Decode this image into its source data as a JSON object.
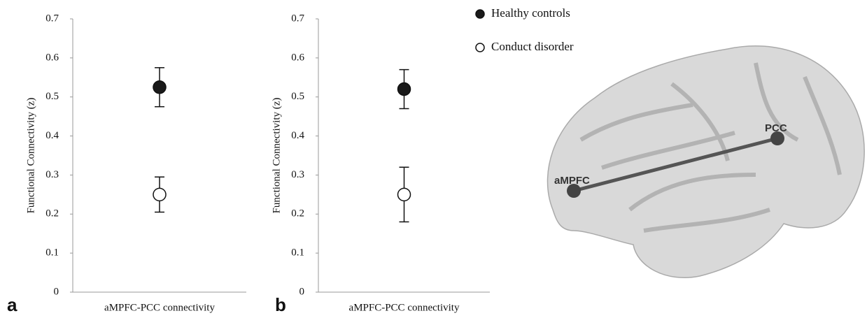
{
  "chart_data": [
    {
      "type": "errorbar",
      "panel_label": "a",
      "ylabel": "Functional Connectivity (z)",
      "categories": [
        "aMPFC-PCC connectivity"
      ],
      "series": [
        {
          "name": "Healthy controls",
          "color": "#1a1a1a",
          "values": [
            0.525
          ],
          "error": [
            0.05
          ]
        },
        {
          "name": "Conduct disorder",
          "color": "#ffffff",
          "values": [
            0.25
          ],
          "error": [
            0.045
          ]
        }
      ],
      "ylim": [
        0,
        0.7
      ],
      "yticks": [
        0,
        0.1,
        0.2,
        0.3,
        0.4,
        0.5,
        0.6,
        0.7
      ]
    },
    {
      "type": "errorbar",
      "panel_label": "b",
      "ylabel": "Functional Connectivity (z)",
      "categories": [
        "aMPFC-PCC connectivity"
      ],
      "series": [
        {
          "name": "Healthy controls",
          "color": "#1a1a1a",
          "values": [
            0.52
          ],
          "error": [
            0.05
          ]
        },
        {
          "name": "Conduct disorder",
          "color": "#ffffff",
          "values": [
            0.25
          ],
          "error": [
            0.07
          ]
        }
      ],
      "ylim": [
        0,
        0.7
      ],
      "yticks": [
        0,
        0.1,
        0.2,
        0.3,
        0.4,
        0.5,
        0.6,
        0.7
      ]
    }
  ],
  "brain_nodes": [
    "aMPFC",
    "PCC"
  ]
}
